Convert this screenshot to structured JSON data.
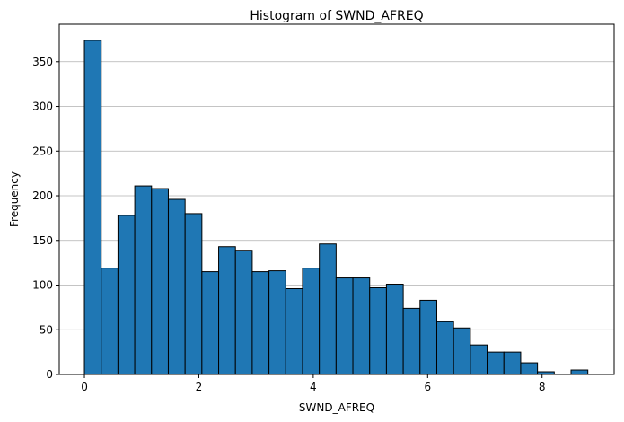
{
  "chart_data": {
    "type": "bar",
    "title": "Histogram of SWND_AFREQ",
    "xlabel": "SWND_AFREQ",
    "ylabel": "Frequency",
    "xlim": [
      -0.44,
      9.26
    ],
    "ylim": [
      0,
      392
    ],
    "xticks": [
      0,
      2,
      4,
      6,
      8
    ],
    "yticks": [
      0,
      50,
      100,
      150,
      200,
      250,
      300,
      350
    ],
    "grid": "y",
    "bar_color": "#1f77b4",
    "edge_color": "#000000",
    "bin_width": 0.2933,
    "bins_start": [
      0.0,
      0.2933,
      0.5867,
      0.88,
      1.1733,
      1.4667,
      1.76,
      2.0533,
      2.3467,
      2.64,
      2.9333,
      3.2267,
      3.52,
      3.8133,
      4.1067,
      4.4,
      4.6933,
      4.9867,
      5.28,
      5.5733,
      5.8667,
      6.16,
      6.4533,
      6.7467,
      7.04,
      7.3333,
      7.6267,
      7.92,
      8.2133,
      8.5067
    ],
    "values": [
      374,
      119,
      178,
      211,
      208,
      196,
      180,
      115,
      143,
      139,
      115,
      116,
      96,
      119,
      146,
      108,
      108,
      97,
      101,
      74,
      83,
      59,
      52,
      33,
      25,
      25,
      13,
      3,
      0,
      5
    ]
  }
}
